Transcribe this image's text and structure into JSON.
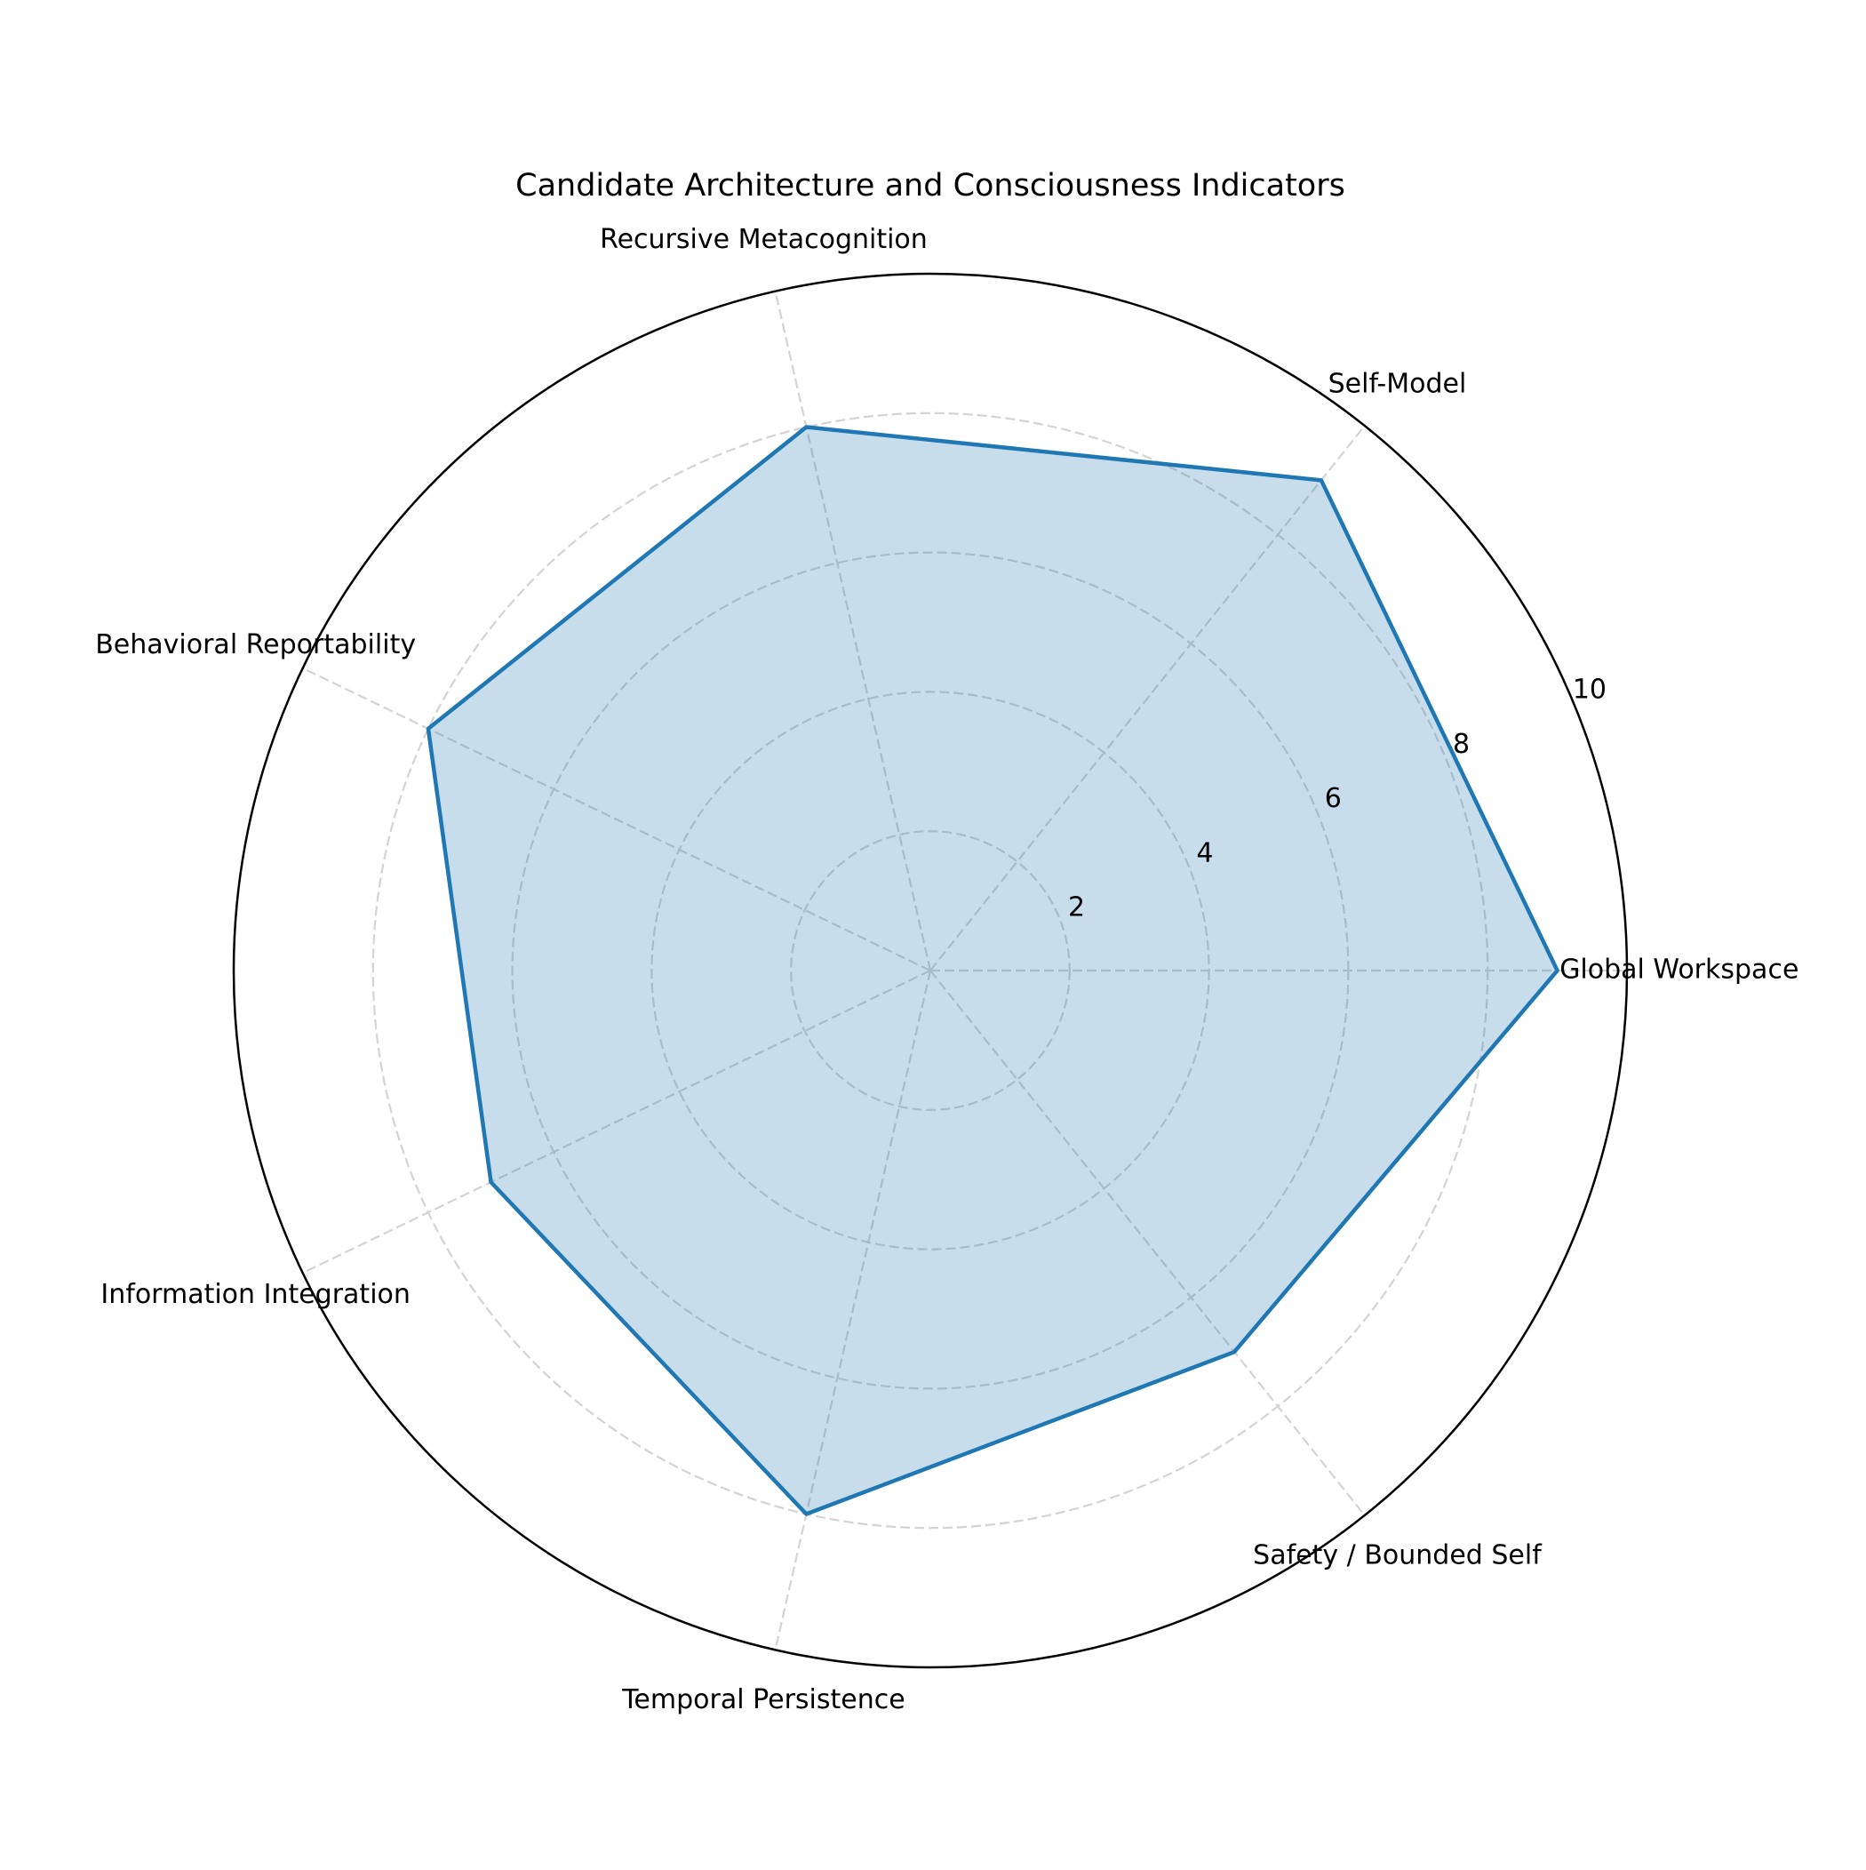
{
  "chart_data": {
    "type": "radar",
    "title": "Candidate Architecture and Consciousness Indicators",
    "categories": [
      "Global Workspace",
      "Self-Model",
      "Recursive Metacognition",
      "Behavioral Reportability",
      "Information Integration",
      "Temporal Persistence",
      "Safety / Bounded Self"
    ],
    "values": [
      9,
      9,
      8,
      8,
      7,
      8,
      7
    ],
    "color": "#1f77b4",
    "ylim": [
      0,
      10
    ],
    "yticks": [
      2,
      4,
      6,
      8,
      10
    ],
    "grid": true
  }
}
